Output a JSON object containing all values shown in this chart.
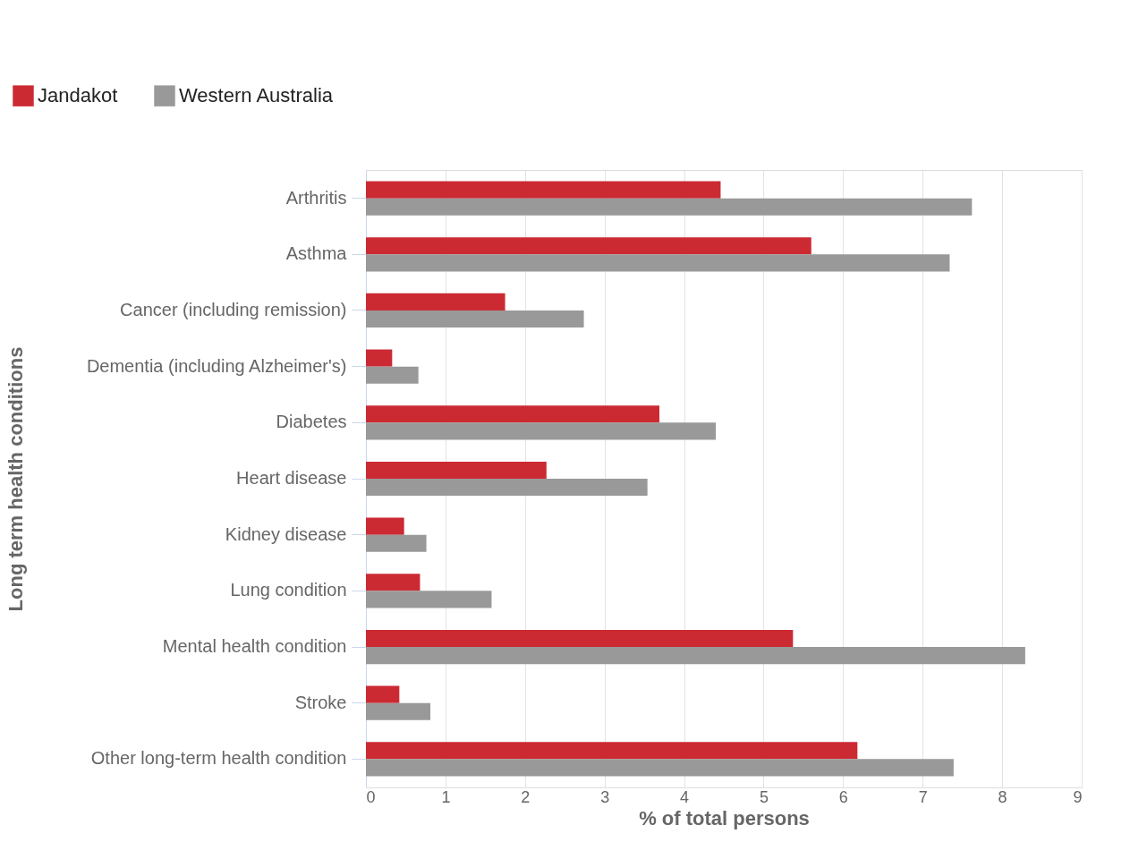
{
  "chart_data": {
    "type": "bar",
    "orientation": "horizontal",
    "ylabel": "Long term health conditions",
    "xlabel": "% of total persons",
    "categories": [
      "Arthritis",
      "Asthma",
      "Cancer (including remission)",
      "Dementia (including Alzheimer's)",
      "Diabetes",
      "Heart disease",
      "Kidney disease",
      "Lung condition",
      "Mental health condition",
      "Stroke",
      "Other long-term health condition"
    ],
    "series": [
      {
        "name": "Jandakot",
        "color": "#cc2a33",
        "values": [
          4.46,
          5.6,
          1.75,
          0.33,
          3.69,
          2.27,
          0.48,
          0.68,
          5.37,
          0.42,
          6.18
        ]
      },
      {
        "name": "Western Australia",
        "color": "#999999",
        "values": [
          7.62,
          7.34,
          2.74,
          0.66,
          4.4,
          3.54,
          0.76,
          1.58,
          8.29,
          0.81,
          7.39
        ]
      }
    ],
    "xlim": [
      0,
      9
    ],
    "xticks": [
      0,
      1,
      2,
      3,
      4,
      5,
      6,
      7,
      8,
      9
    ],
    "grid": "x",
    "legend": "top left"
  }
}
